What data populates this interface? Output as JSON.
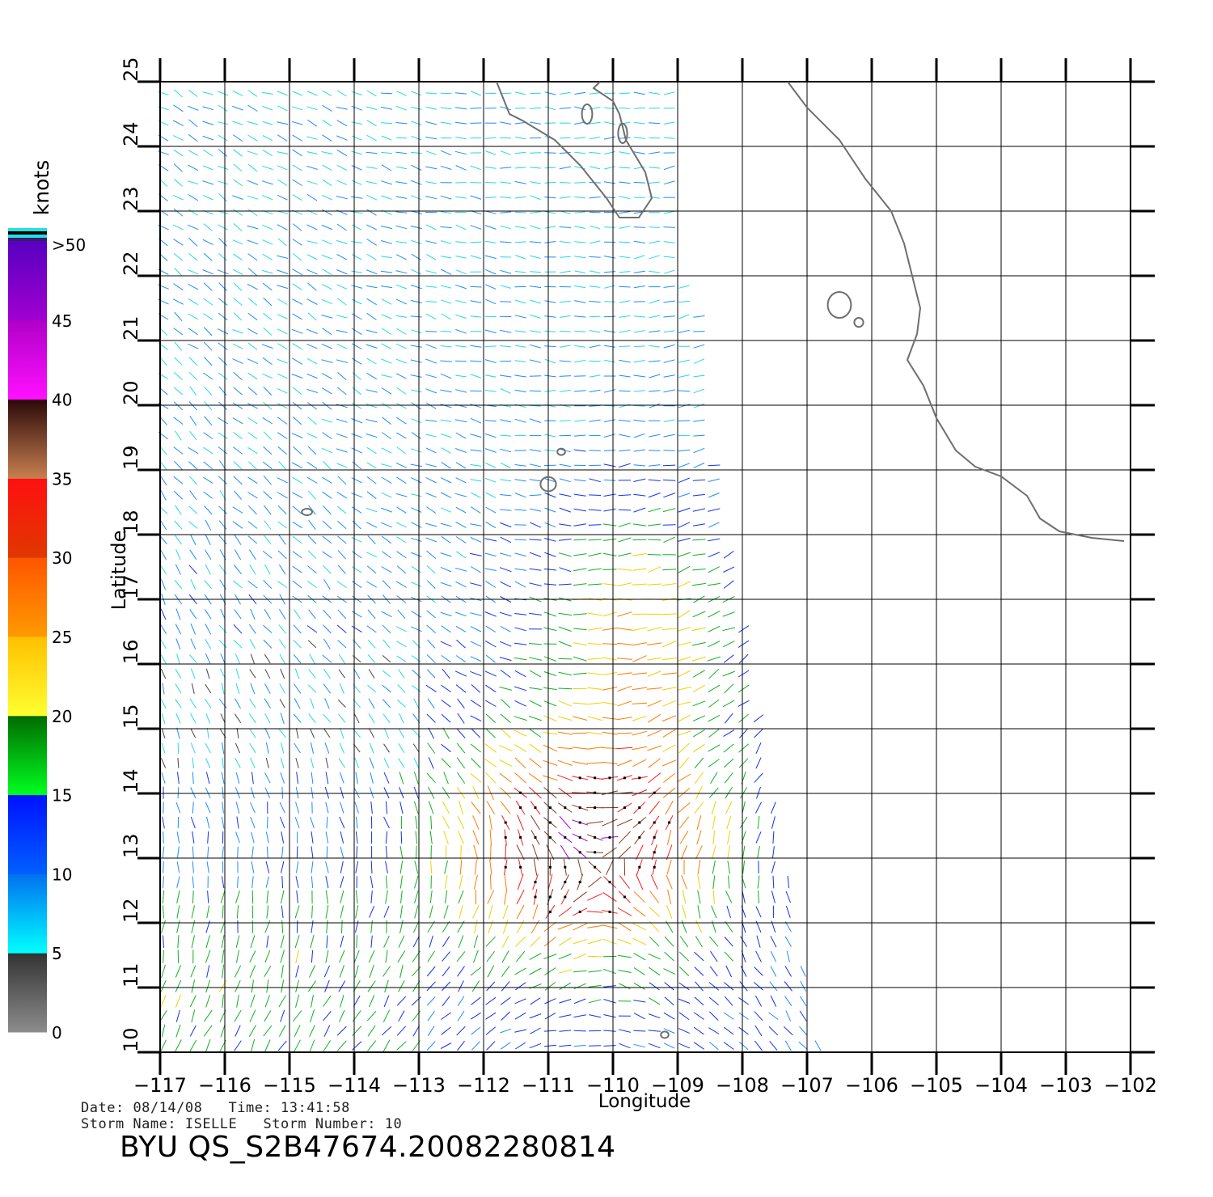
{
  "header": {
    "date_label": "Date:",
    "date": "08/14/08",
    "time_label": "Time:",
    "time": "13:41:58",
    "storm_name_label": "Storm Name:",
    "storm_name": "ISELLE",
    "storm_number_label": "Storm Number:",
    "storm_number": "10",
    "title": "BYU QS_S2B47674.20082280814"
  },
  "axes": {
    "xlabel": "Longitude",
    "ylabel": "Latitude",
    "lon_range": [
      -117,
      -102
    ],
    "lat_range": [
      10,
      25
    ],
    "lon_ticks": [
      "-117",
      "-116",
      "-115",
      "-114",
      "-113",
      "-112",
      "-111",
      "-110",
      "-109",
      "-108",
      "-107",
      "-106",
      "-105",
      "-104",
      "-103",
      "-102"
    ],
    "lat_ticks": [
      "10",
      "11",
      "12",
      "13",
      "14",
      "15",
      "16",
      "17",
      "18",
      "19",
      "20",
      "21",
      "22",
      "23",
      "24",
      "25"
    ],
    "grid": true
  },
  "colorbar": {
    "unit": "knots",
    "tick_labels": [
      "0",
      "5",
      "10",
      "15",
      "20",
      "25",
      "30",
      "35",
      "40",
      "45",
      ">50"
    ],
    "bands": [
      {
        "from": 0,
        "to": 5,
        "colors": [
          "#8c8c8c",
          "#333333"
        ]
      },
      {
        "from": 5,
        "to": 10,
        "colors": [
          "#00ffff",
          "#0070f0"
        ]
      },
      {
        "from": 10,
        "to": 15,
        "colors": [
          "#0060ff",
          "#0010ff"
        ]
      },
      {
        "from": 15,
        "to": 20,
        "colors": [
          "#00ff20",
          "#006a00"
        ]
      },
      {
        "from": 20,
        "to": 25,
        "colors": [
          "#ffff30",
          "#ffc000"
        ]
      },
      {
        "from": 25,
        "to": 30,
        "colors": [
          "#ff9a00",
          "#ff5500"
        ]
      },
      {
        "from": 30,
        "to": 35,
        "colors": [
          "#e03800",
          "#ff1010"
        ]
      },
      {
        "from": 35,
        "to": 40,
        "colors": [
          "#c88050",
          "#2a0808"
        ]
      },
      {
        "from": 40,
        "to": 45,
        "colors": [
          "#ff10ff",
          "#b000c8"
        ]
      },
      {
        "from": 45,
        "to": 50,
        "colors": [
          "#a000d0",
          "#5800c0"
        ]
      }
    ],
    "overflow_colors": [
      "#3a1a6a",
      "#22e0e0",
      "#000000",
      "#22e0e0"
    ]
  },
  "colors": {
    "coastline": "#6e6e6e",
    "grid": "#000000"
  },
  "map": {
    "coastlines": [
      {
        "name": "Baja California",
        "points": [
          [
            -111.8,
            25
          ],
          [
            -111.6,
            24.5
          ],
          [
            -111.4,
            24.4
          ],
          [
            -110.9,
            24.1
          ],
          [
            -110.5,
            23.7
          ],
          [
            -110.1,
            23.2
          ],
          [
            -109.9,
            22.9
          ],
          [
            -109.6,
            22.9
          ],
          [
            -109.4,
            23.2
          ],
          [
            -109.5,
            23.6
          ],
          [
            -109.8,
            24.1
          ],
          [
            -109.9,
            24.5
          ],
          [
            -110.0,
            24.7
          ],
          [
            -110.3,
            24.9
          ],
          [
            -110.2,
            25
          ]
        ]
      },
      {
        "name": "Mainland Mexico",
        "points": [
          [
            -107.3,
            25
          ],
          [
            -107.0,
            24.6
          ],
          [
            -106.5,
            24.1
          ],
          [
            -106.1,
            23.5
          ],
          [
            -105.7,
            23.0
          ],
          [
            -105.5,
            22.5
          ],
          [
            -105.35,
            21.9
          ],
          [
            -105.25,
            21.5
          ],
          [
            -105.3,
            21.1
          ],
          [
            -105.45,
            20.7
          ],
          [
            -105.2,
            20.3
          ],
          [
            -105.0,
            19.8
          ],
          [
            -104.7,
            19.3
          ],
          [
            -104.4,
            19.05
          ],
          [
            -104.0,
            18.9
          ],
          [
            -103.6,
            18.6
          ],
          [
            -103.4,
            18.25
          ],
          [
            -103.1,
            18.05
          ],
          [
            -102.6,
            17.95
          ],
          [
            -102.1,
            17.9
          ]
        ]
      }
    ],
    "islands": [
      {
        "name": "Isla Espiritu Santo",
        "lon": -110.4,
        "lat": 24.5,
        "rx": 0.08,
        "ry": 0.15
      },
      {
        "name": "Isla Cerralvo",
        "lon": -109.85,
        "lat": 24.2,
        "rx": 0.07,
        "ry": 0.15
      },
      {
        "name": "Islas Marias",
        "lon": -106.5,
        "lat": 21.55,
        "rx": 0.18,
        "ry": 0.2
      },
      {
        "name": "Isla Maria Cleofas",
        "lon": -106.2,
        "lat": 21.28,
        "rx": 0.07,
        "ry": 0.07
      },
      {
        "name": "Isla San Benedicto",
        "lon": -110.8,
        "lat": 19.28,
        "rx": 0.06,
        "ry": 0.05
      },
      {
        "name": "Isla Socorro",
        "lon": -111.0,
        "lat": 18.78,
        "rx": 0.12,
        "ry": 0.11
      },
      {
        "name": "Isla Clarion",
        "lon": -114.73,
        "lat": 18.35,
        "rx": 0.08,
        "ry": 0.05
      },
      {
        "name": "Clipperton",
        "lon": -109.2,
        "lat": 10.27,
        "rx": 0.06,
        "ry": 0.05
      }
    ]
  }
}
